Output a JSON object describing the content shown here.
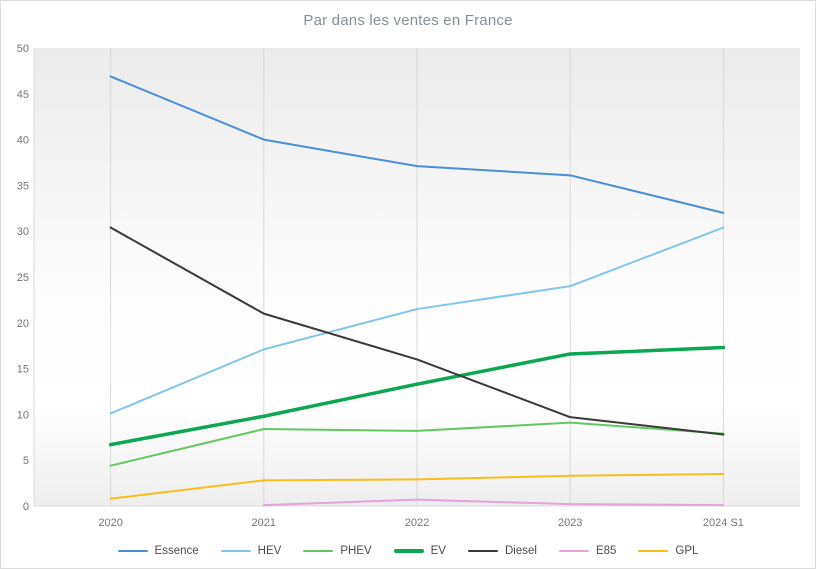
{
  "title": "Par dans les ventes en France",
  "axis": {
    "y_tick_labels": [
      "0",
      "5",
      "10",
      "15",
      "20",
      "25",
      "30",
      "35",
      "40",
      "45",
      "50"
    ],
    "x_tick_labels": [
      "2020",
      "2021",
      "2022",
      "2023",
      "2024 S1"
    ]
  },
  "colors": {
    "title_text": "#878f96",
    "axis_text": "#757575",
    "gridline": "#d9d9d9",
    "legend_text": "#4a4a4a",
    "plot_bg_top": "#ebebeb",
    "plot_bg_mid": "#fdfdfd",
    "plot_bg_bottom": "#eeeeee"
  },
  "chart_data": {
    "type": "line",
    "title": "Par dans les ventes en France",
    "xlabel": "",
    "ylabel": "",
    "categories": [
      "2020",
      "2021",
      "2022",
      "2023",
      "2024 S1"
    ],
    "series": [
      {
        "name": "Essence",
        "color": "#4a8ed5",
        "line_width": 2,
        "values": [
          46.9,
          40.0,
          37.1,
          36.1,
          32.0
        ]
      },
      {
        "name": "HEV",
        "color": "#82c6ea",
        "line_width": 2,
        "values": [
          10.1,
          17.1,
          21.5,
          24.0,
          30.4
        ]
      },
      {
        "name": "PHEV",
        "color": "#62c962",
        "line_width": 2,
        "values": [
          4.4,
          8.4,
          8.2,
          9.1,
          7.9
        ]
      },
      {
        "name": "EV",
        "color": "#0ca750",
        "line_width": 3.5,
        "values": [
          6.7,
          9.8,
          13.3,
          16.6,
          17.3
        ]
      },
      {
        "name": "Diesel",
        "color": "#3a3a3a",
        "line_width": 2,
        "values": [
          30.4,
          21.0,
          16.0,
          9.7,
          7.8
        ]
      },
      {
        "name": "E85",
        "color": "#e0a3dc",
        "line_width": 2,
        "values": [
          null,
          0.1,
          0.7,
          0.2,
          0.1
        ]
      },
      {
        "name": "GPL",
        "color": "#f8bd1a",
        "line_width": 2,
        "values": [
          0.8,
          2.8,
          2.9,
          3.3,
          3.5
        ]
      }
    ],
    "ylim": [
      0,
      50
    ],
    "ytick_step": 5,
    "grid": "vertical-category-lines-only",
    "legend_position": "bottom"
  }
}
